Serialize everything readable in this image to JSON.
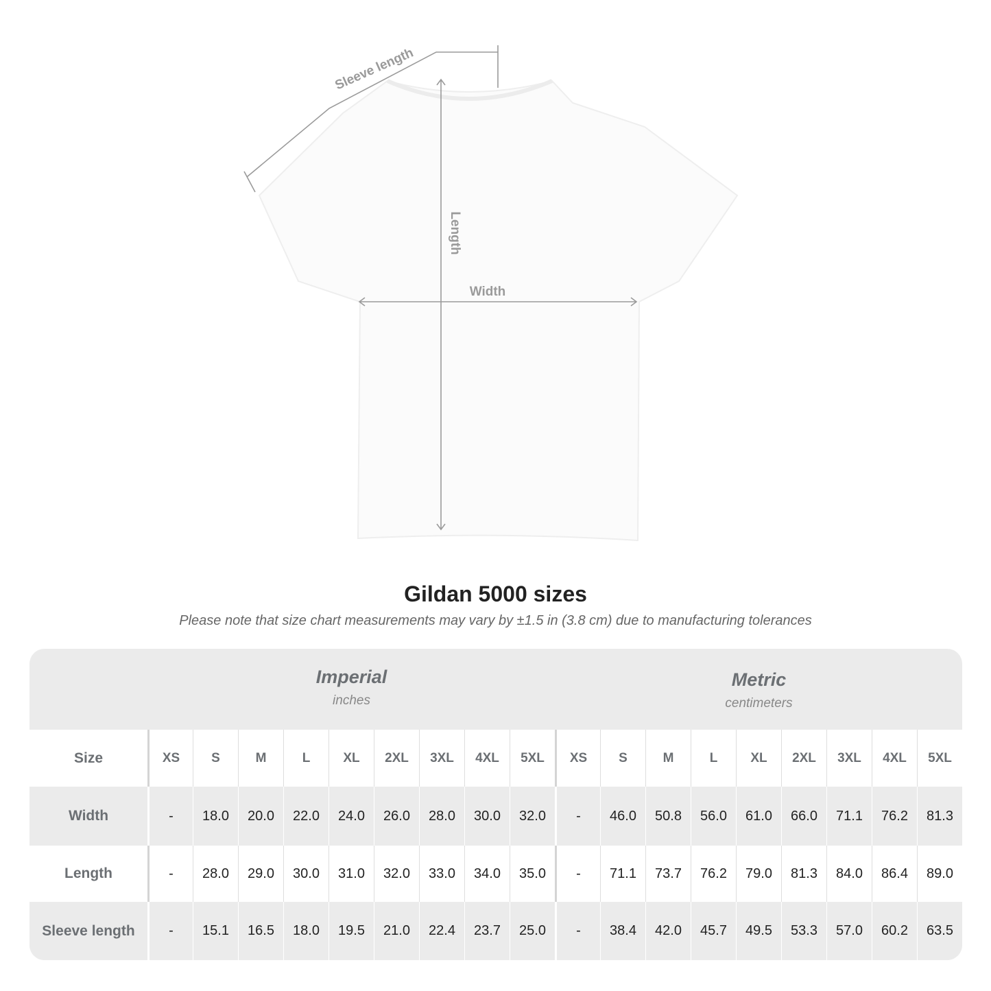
{
  "diagram": {
    "labels": {
      "sleeve": "Sleeve length",
      "length": "Length",
      "width": "Width"
    },
    "line_color": "#9a9a9a",
    "shirt_color": "#fbfbfb"
  },
  "title": "Gildan 5000 sizes",
  "note": "Please note that size chart measurements may vary by ±1.5 in (3.8 cm) due to manufacturing tolerances",
  "table": {
    "imperial": {
      "name": "Imperial",
      "unit": "inches"
    },
    "metric": {
      "name": "Metric",
      "unit": "centimeters"
    },
    "size_label": "Size",
    "sizes": [
      "XS",
      "S",
      "M",
      "L",
      "XL",
      "2XL",
      "3XL",
      "4XL",
      "5XL"
    ],
    "rows": [
      {
        "label": "Width",
        "imperial": [
          "-",
          "18.0",
          "20.0",
          "22.0",
          "24.0",
          "26.0",
          "28.0",
          "30.0",
          "32.0"
        ],
        "metric": [
          "-",
          "46.0",
          "50.8",
          "56.0",
          "61.0",
          "66.0",
          "71.1",
          "76.2",
          "81.3"
        ]
      },
      {
        "label": "Length",
        "imperial": [
          "-",
          "28.0",
          "29.0",
          "30.0",
          "31.0",
          "32.0",
          "33.0",
          "34.0",
          "35.0"
        ],
        "metric": [
          "-",
          "71.1",
          "73.7",
          "76.2",
          "79.0",
          "81.3",
          "84.0",
          "86.4",
          "89.0"
        ]
      },
      {
        "label": "Sleeve length",
        "imperial": [
          "-",
          "15.1",
          "16.5",
          "18.0",
          "19.5",
          "21.0",
          "22.4",
          "23.7",
          "25.0"
        ],
        "metric": [
          "-",
          "38.4",
          "42.0",
          "45.7",
          "49.5",
          "53.3",
          "57.0",
          "60.2",
          "63.5"
        ]
      }
    ]
  }
}
